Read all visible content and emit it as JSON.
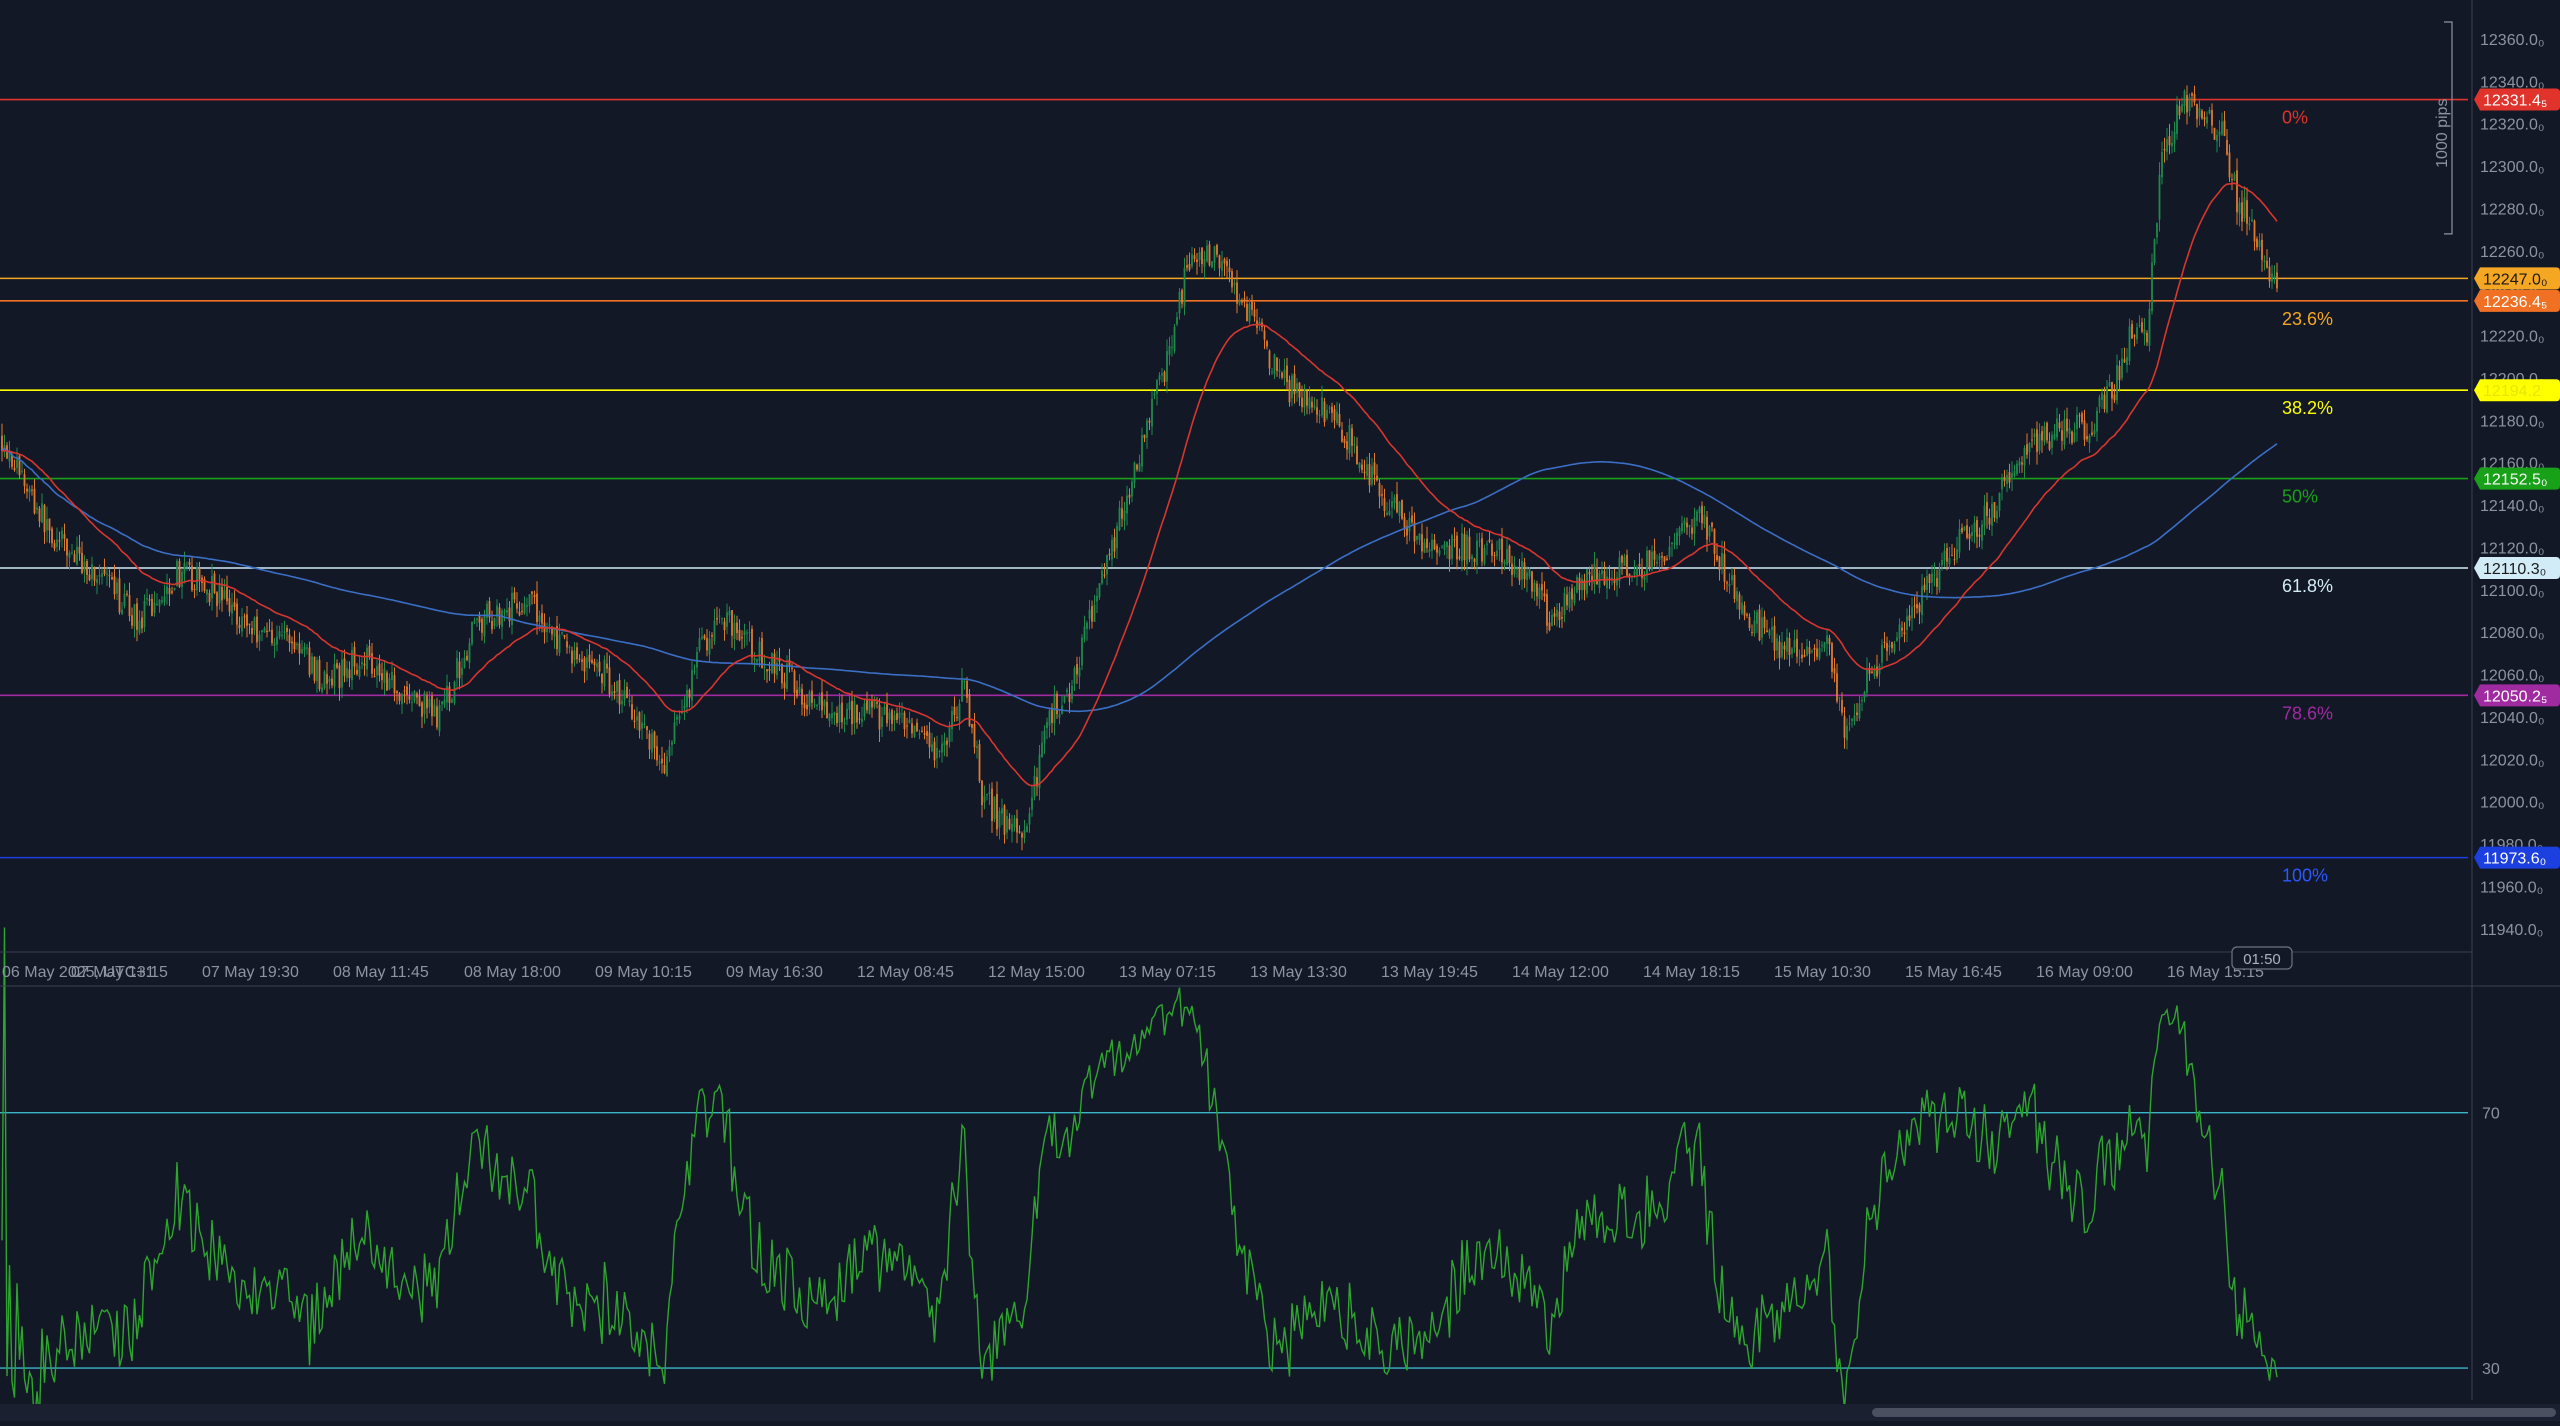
{
  "colors": {
    "background": "#121826",
    "grid_text": "#8c94a3",
    "bull_candle": "#1f8a4c",
    "bear_candle": "#e07a2e",
    "ma_fast": "#d8362f",
    "ma_slow": "#3b6fc6",
    "rsi_line": "#2ea52e",
    "rsi_levels": "#3bb6c9"
  },
  "chart_data": [
    {
      "type": "candlestick",
      "panel": "price",
      "y_axis": {
        "range": [
          11930,
          12368
        ],
        "ticks": [
          "12360.0₀",
          "12340.0₀",
          "12320.0₀",
          "12300.0₀",
          "12280.0₀",
          "12260.0₀",
          "12240.0₀",
          "12220.0₀",
          "12200.0₀",
          "12180.0₀",
          "12160.0₀",
          "12140.0₀",
          "12120.0₀",
          "12100.0₀",
          "12080.0₀",
          "12060.0₀",
          "12040.0₀",
          "12020.0₀",
          "12000.0₀",
          "11980.0₀",
          "11960.0₀",
          "11940.0₀"
        ],
        "tick_values": [
          12360,
          12340,
          12320,
          12300,
          12280,
          12260,
          12240,
          12220,
          12200,
          12180,
          12160,
          12140,
          12120,
          12100,
          12080,
          12060,
          12040,
          12020,
          12000,
          11980,
          11960,
          11940
        ],
        "pips_label": "1000 pips",
        "pips_range": [
          12268,
          12368
        ]
      },
      "x_axis": {
        "labels": [
          "06 May 2025, UTC+1",
          "07 May 13:15",
          "07 May 19:30",
          "08 May 11:45",
          "08 May 18:00",
          "09 May 10:15",
          "09 May 16:30",
          "12 May 08:45",
          "12 May 15:00",
          "13 May 07:15",
          "13 May 13:30",
          "13 May 19:45",
          "14 May 12:00",
          "14 May 18:15",
          "15 May 10:30",
          "15 May 16:45",
          "16 May 09:00",
          "16 May 15:15"
        ],
        "countdown": "01:50"
      },
      "price_anchors": [
        [
          0,
          12172
        ],
        [
          20,
          12125
        ],
        [
          40,
          12105
        ],
        [
          55,
          12085
        ],
        [
          70,
          12108
        ],
        [
          85,
          12100
        ],
        [
          100,
          12082
        ],
        [
          115,
          12078
        ],
        [
          130,
          12055
        ],
        [
          145,
          12070
        ],
        [
          160,
          12052
        ],
        [
          175,
          12040
        ],
        [
          190,
          12085
        ],
        [
          210,
          12095
        ],
        [
          225,
          12072
        ],
        [
          240,
          12062
        ],
        [
          255,
          12040
        ],
        [
          265,
          12015
        ],
        [
          280,
          12075
        ],
        [
          290,
          12088
        ],
        [
          300,
          12072
        ],
        [
          315,
          12058
        ],
        [
          330,
          12040
        ],
        [
          345,
          12045
        ],
        [
          360,
          12035
        ],
        [
          375,
          12020
        ],
        [
          385,
          12055
        ],
        [
          392,
          12005
        ],
        [
          400,
          11990
        ],
        [
          410,
          11985
        ],
        [
          418,
          12040
        ],
        [
          428,
          12055
        ],
        [
          438,
          12100
        ],
        [
          452,
          12150
        ],
        [
          465,
          12205
        ],
        [
          475,
          12255
        ],
        [
          485,
          12258
        ],
        [
          495,
          12240
        ],
        [
          505,
          12215
        ],
        [
          515,
          12195
        ],
        [
          525,
          12190
        ],
        [
          540,
          12170
        ],
        [
          555,
          12140
        ],
        [
          570,
          12120
        ],
        [
          585,
          12120
        ],
        [
          598,
          12120
        ],
        [
          610,
          12108
        ],
        [
          620,
          12085
        ],
        [
          630,
          12100
        ],
        [
          642,
          12110
        ],
        [
          655,
          12110
        ],
        [
          668,
          12120
        ],
        [
          680,
          12135
        ],
        [
          690,
          12105
        ],
        [
          700,
          12085
        ],
        [
          710,
          12075
        ],
        [
          720,
          12068
        ],
        [
          730,
          12075
        ],
        [
          737,
          12030
        ],
        [
          747,
          12060
        ],
        [
          760,
          12080
        ],
        [
          772,
          12105
        ],
        [
          785,
          12125
        ],
        [
          795,
          12135
        ],
        [
          805,
          12160
        ],
        [
          815,
          12172
        ],
        [
          825,
          12175
        ],
        [
          835,
          12178
        ],
        [
          845,
          12195
        ],
        [
          852,
          12225
        ],
        [
          858,
          12220
        ],
        [
          864,
          12305
        ],
        [
          872,
          12330
        ],
        [
          880,
          12325
        ],
        [
          888,
          12315
        ],
        [
          894,
          12285
        ],
        [
          902,
          12268
        ],
        [
          910,
          12240
        ]
      ],
      "series": [
        {
          "name": "",
          "kind": "ema-fast",
          "start_index": 0,
          "end_index": 908
        },
        {
          "name": "",
          "kind": "sma-slow",
          "start_index": 0,
          "end_index": 908
        }
      ],
      "levels": [
        {
          "value": 12331.4,
          "label": "12331.4₅",
          "pct": "0%",
          "color": "#e0332b",
          "pct_color": "#e0332b",
          "label_text_color": "#ffffff"
        },
        {
          "value": 12247.0,
          "label": "12247.0₀",
          "pct": "",
          "color": "#f5a623",
          "pct_color": "#f5a623",
          "label_text_color": "#1a1a1a"
        },
        {
          "value": 12236.4,
          "label": "12236.4₅",
          "pct": "23.6%",
          "color": "#f07024",
          "pct_color": "#f5a623",
          "label_text_color": "#ffffff"
        },
        {
          "value": 12194.2,
          "label": "12194.2",
          "pct": "38.2%",
          "color": "#ffff00",
          "pct_color": "#ffff00",
          "label_text_color": "#e6e600"
        },
        {
          "value": 12152.5,
          "label": "12152.5₀",
          "pct": "50%",
          "color": "#18a018",
          "pct_color": "#18a018",
          "label_text_color": "#ffffff"
        },
        {
          "value": 12110.3,
          "label": "12110.3₀",
          "pct": "61.8%",
          "color": "#d2ecf7",
          "pct_color": "#d2ecf7",
          "label_text_color": "#1a1a1a"
        },
        {
          "value": 12050.2,
          "label": "12050.2₅",
          "pct": "78.6%",
          "color": "#a02aa0",
          "pct_color": "#a02aa0",
          "label_text_color": "#ffffff"
        },
        {
          "value": 11973.6,
          "label": "11973.6₀",
          "pct": "100%",
          "color": "#1c3fe0",
          "pct_color": "#2c58ff",
          "label_text_color": "#ffffff"
        }
      ],
      "grid": false,
      "legend": "none"
    },
    {
      "type": "line",
      "panel": "rsi",
      "y_axis": {
        "range": [
          25,
          90
        ],
        "ticks": [
          "70",
          "30"
        ],
        "tick_values": [
          70,
          30
        ]
      },
      "levels": [
        70,
        30
      ],
      "series": [
        {
          "name": "",
          "color": "#2ea52e",
          "start_index": 0,
          "end_index": 908
        }
      ]
    }
  ]
}
